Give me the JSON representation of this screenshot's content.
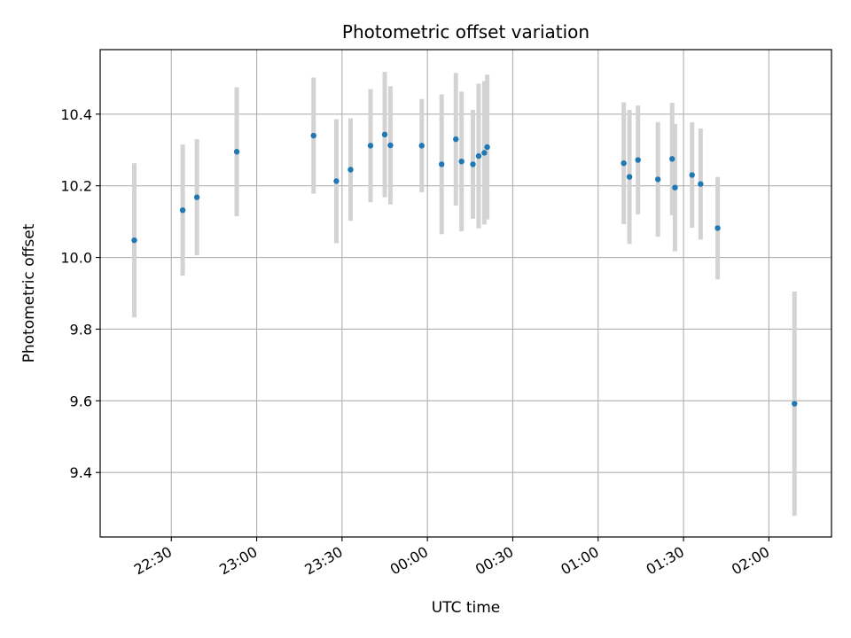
{
  "chart_data": {
    "type": "scatter",
    "title": "Photometric offset variation",
    "xlabel": "UTC time",
    "ylabel": "Photometric offset",
    "xlim": [
      "22:05",
      "02:22"
    ],
    "ylim": [
      9.22,
      10.58
    ],
    "xticks": [
      "22:30",
      "23:00",
      "23:30",
      "00:00",
      "00:30",
      "01:00",
      "01:30",
      "02:00"
    ],
    "yticks": [
      "9.4",
      "9.6",
      "9.8",
      "10.0",
      "10.2",
      "10.4"
    ],
    "grid": true,
    "colors": {
      "point": "#1f77b4",
      "errorbar": "#d3d3d3",
      "grid": "#b0b0b0"
    },
    "points": [
      {
        "x": "22:17",
        "y": 10.048,
        "yerr": 0.215
      },
      {
        "x": "22:34",
        "y": 10.132,
        "yerr": 0.183
      },
      {
        "x": "22:39",
        "y": 10.168,
        "yerr": 0.162
      },
      {
        "x": "22:53",
        "y": 10.295,
        "yerr": 0.18
      },
      {
        "x": "23:20",
        "y": 10.34,
        "yerr": 0.162
      },
      {
        "x": "23:28",
        "y": 10.213,
        "yerr": 0.173
      },
      {
        "x": "23:33",
        "y": 10.245,
        "yerr": 0.143
      },
      {
        "x": "23:40",
        "y": 10.312,
        "yerr": 0.158
      },
      {
        "x": "23:45",
        "y": 10.343,
        "yerr": 0.175
      },
      {
        "x": "23:47",
        "y": 10.313,
        "yerr": 0.165
      },
      {
        "x": "23:58",
        "y": 10.312,
        "yerr": 0.13
      },
      {
        "x": "00:05",
        "y": 10.26,
        "yerr": 0.195
      },
      {
        "x": "00:10",
        "y": 10.33,
        "yerr": 0.185
      },
      {
        "x": "00:12",
        "y": 10.268,
        "yerr": 0.195
      },
      {
        "x": "00:16",
        "y": 10.26,
        "yerr": 0.152
      },
      {
        "x": "00:18",
        "y": 10.283,
        "yerr": 0.202
      },
      {
        "x": "00:20",
        "y": 10.292,
        "yerr": 0.2
      },
      {
        "x": "00:21",
        "y": 10.308,
        "yerr": 0.202
      },
      {
        "x": "01:09",
        "y": 10.263,
        "yerr": 0.17
      },
      {
        "x": "01:11",
        "y": 10.225,
        "yerr": 0.187
      },
      {
        "x": "01:14",
        "y": 10.272,
        "yerr": 0.152
      },
      {
        "x": "01:21",
        "y": 10.218,
        "yerr": 0.16
      },
      {
        "x": "01:26",
        "y": 10.275,
        "yerr": 0.157
      },
      {
        "x": "01:27",
        "y": 10.195,
        "yerr": 0.178
      },
      {
        "x": "01:33",
        "y": 10.23,
        "yerr": 0.147
      },
      {
        "x": "01:36",
        "y": 10.205,
        "yerr": 0.155
      },
      {
        "x": "01:42",
        "y": 10.082,
        "yerr": 0.143
      },
      {
        "x": "02:09",
        "y": 9.592,
        "yerr": 0.313
      }
    ]
  }
}
